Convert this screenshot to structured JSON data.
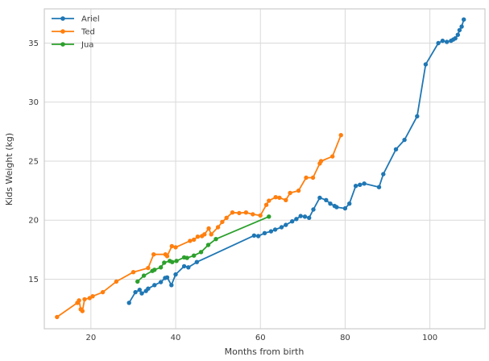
{
  "chart_data": {
    "type": "line",
    "title": "",
    "xlabel": "Months from birth",
    "ylabel": "Kids Weight (kg)",
    "xlim": [
      9,
      113
    ],
    "ylim": [
      10.8,
      37.9
    ],
    "xticks": [
      20,
      40,
      60,
      80,
      100
    ],
    "yticks": [
      15,
      20,
      25,
      30,
      35
    ],
    "grid": true,
    "legend_position": "upper left",
    "colors": {
      "grid": "#d9d9d9",
      "border": "#cccccc",
      "text": "#3a3a3a",
      "background": "#ffffff"
    },
    "series": [
      {
        "name": "Ariel",
        "color": "#1f77b4",
        "points": [
          [
            29,
            13.0
          ],
          [
            30.5,
            13.9
          ],
          [
            31.5,
            14.1
          ],
          [
            32,
            13.8
          ],
          [
            33,
            14.0
          ],
          [
            33.5,
            14.2
          ],
          [
            35,
            14.5
          ],
          [
            36.5,
            14.75
          ],
          [
            37.5,
            15.1
          ],
          [
            38,
            15.15
          ],
          [
            39,
            14.5
          ],
          [
            40,
            15.4
          ],
          [
            42,
            16.1
          ],
          [
            43,
            16.0
          ],
          [
            45,
            16.45
          ],
          [
            58.5,
            18.7
          ],
          [
            59.5,
            18.65
          ],
          [
            61,
            18.9
          ],
          [
            62.5,
            19.05
          ],
          [
            63.5,
            19.2
          ],
          [
            65,
            19.4
          ],
          [
            66,
            19.6
          ],
          [
            67.5,
            19.9
          ],
          [
            68.5,
            20.1
          ],
          [
            69.5,
            20.35
          ],
          [
            70.5,
            20.3
          ],
          [
            71.5,
            20.2
          ],
          [
            72.5,
            20.9
          ],
          [
            74,
            21.9
          ],
          [
            75.5,
            21.7
          ],
          [
            76.5,
            21.4
          ],
          [
            77.5,
            21.2
          ],
          [
            78,
            21.1
          ],
          [
            80,
            21.0
          ],
          [
            81,
            21.4
          ],
          [
            82.5,
            22.9
          ],
          [
            83.5,
            23.0
          ],
          [
            84.5,
            23.1
          ],
          [
            88,
            22.8
          ],
          [
            89,
            23.9
          ],
          [
            92,
            26.0
          ],
          [
            94,
            26.8
          ],
          [
            97,
            28.8
          ],
          [
            99,
            33.2
          ],
          [
            102,
            35.0
          ],
          [
            103,
            35.2
          ],
          [
            104,
            35.1
          ],
          [
            105,
            35.2
          ],
          [
            105.5,
            35.3
          ],
          [
            106,
            35.4
          ],
          [
            106.6,
            35.7
          ],
          [
            107,
            36.1
          ],
          [
            107.5,
            36.4
          ],
          [
            108,
            37.0
          ]
        ]
      },
      {
        "name": "Ted",
        "color": "#ff7f0e",
        "points": [
          [
            12,
            11.8
          ],
          [
            16.8,
            13.0
          ],
          [
            17.2,
            13.2
          ],
          [
            17.6,
            12.45
          ],
          [
            18,
            12.3
          ],
          [
            18.5,
            13.3
          ],
          [
            19.7,
            13.4
          ],
          [
            20.4,
            13.55
          ],
          [
            22.8,
            13.9
          ],
          [
            26,
            14.8
          ],
          [
            30,
            15.6
          ],
          [
            33.5,
            15.95
          ],
          [
            34.8,
            17.1
          ],
          [
            37.6,
            17.1
          ],
          [
            38,
            16.95
          ],
          [
            39.1,
            17.8
          ],
          [
            40,
            17.7
          ],
          [
            43.4,
            18.25
          ],
          [
            44.3,
            18.35
          ],
          [
            45.2,
            18.6
          ],
          [
            46.2,
            18.65
          ],
          [
            46.8,
            18.8
          ],
          [
            47.8,
            19.3
          ],
          [
            48.4,
            18.8
          ],
          [
            50,
            19.4
          ],
          [
            51,
            19.85
          ],
          [
            52,
            20.2
          ],
          [
            53.4,
            20.65
          ],
          [
            55,
            20.6
          ],
          [
            56.6,
            20.65
          ],
          [
            58.2,
            20.5
          ],
          [
            60,
            20.4
          ],
          [
            61.4,
            21.3
          ],
          [
            62,
            21.65
          ],
          [
            63.6,
            21.95
          ],
          [
            64.5,
            21.9
          ],
          [
            66,
            21.7
          ],
          [
            67,
            22.3
          ],
          [
            69,
            22.5
          ],
          [
            70.8,
            23.6
          ],
          [
            72.4,
            23.6
          ],
          [
            74,
            24.8
          ],
          [
            74.3,
            25.0
          ],
          [
            77,
            25.4
          ],
          [
            79,
            27.2
          ]
        ]
      },
      {
        "name": "Jua",
        "color": "#2ca02c",
        "points": [
          [
            31,
            14.8
          ],
          [
            32.5,
            15.3
          ],
          [
            34.5,
            15.7
          ],
          [
            35,
            15.8
          ],
          [
            36.5,
            16.0
          ],
          [
            37.3,
            16.4
          ],
          [
            38.6,
            16.55
          ],
          [
            39.2,
            16.45
          ],
          [
            40.2,
            16.55
          ],
          [
            42,
            16.85
          ],
          [
            42.7,
            16.8
          ],
          [
            44.3,
            17.0
          ],
          [
            46,
            17.3
          ],
          [
            47.7,
            17.9
          ],
          [
            49.5,
            18.4
          ],
          [
            62,
            20.3
          ]
        ]
      }
    ]
  }
}
